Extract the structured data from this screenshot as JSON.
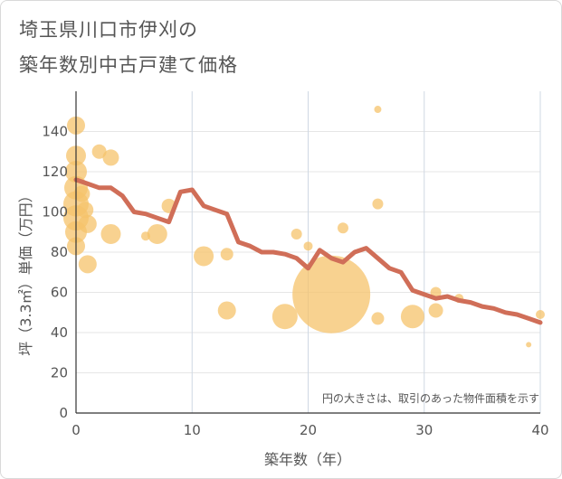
{
  "title": {
    "line1": "埼玉県川口市伊刈の",
    "line2": "築年数別中古戸建て価格"
  },
  "chart_data": {
    "type": "scatter",
    "title": "埼玉県川口市伊刈の築年数別中古戸建て価格",
    "xlabel": "築年数（年）",
    "ylabel": "坪（3.3㎡）単価（万円）",
    "xlim": [
      0,
      40
    ],
    "ylim": [
      0,
      160
    ],
    "xticks": [
      0,
      10,
      20,
      30,
      40
    ],
    "yticks": [
      0,
      20,
      40,
      60,
      80,
      100,
      120,
      140
    ],
    "grid": true,
    "note": "円の大きさは、取引のあった物件面積を示す",
    "colors": {
      "bubble": "#f5c36b",
      "line": "#d06e58"
    },
    "bubbles": [
      {
        "x": 0,
        "y": 143,
        "r": 10
      },
      {
        "x": 0,
        "y": 128,
        "r": 11
      },
      {
        "x": 0,
        "y": 120,
        "r": 12
      },
      {
        "x": 0,
        "y": 112,
        "r": 13
      },
      {
        "x": 0,
        "y": 104,
        "r": 14
      },
      {
        "x": 0,
        "y": 97,
        "r": 14
      },
      {
        "x": 0,
        "y": 90,
        "r": 12
      },
      {
        "x": 0,
        "y": 83,
        "r": 10
      },
      {
        "x": 0.5,
        "y": 109,
        "r": 9
      },
      {
        "x": 0.8,
        "y": 101,
        "r": 9
      },
      {
        "x": 1,
        "y": 94,
        "r": 10
      },
      {
        "x": 1,
        "y": 74,
        "r": 10
      },
      {
        "x": 2,
        "y": 130,
        "r": 8
      },
      {
        "x": 3,
        "y": 127,
        "r": 9
      },
      {
        "x": 3,
        "y": 89,
        "r": 11
      },
      {
        "x": 6,
        "y": 88,
        "r": 5
      },
      {
        "x": 7,
        "y": 89,
        "r": 11
      },
      {
        "x": 8,
        "y": 103,
        "r": 8
      },
      {
        "x": 11,
        "y": 78,
        "r": 11
      },
      {
        "x": 13,
        "y": 79,
        "r": 7
      },
      {
        "x": 13,
        "y": 51,
        "r": 10
      },
      {
        "x": 18,
        "y": 48,
        "r": 14
      },
      {
        "x": 19,
        "y": 89,
        "r": 6
      },
      {
        "x": 20,
        "y": 83,
        "r": 5
      },
      {
        "x": 22,
        "y": 59,
        "r": 43
      },
      {
        "x": 23,
        "y": 92,
        "r": 6
      },
      {
        "x": 26,
        "y": 151,
        "r": 4
      },
      {
        "x": 26,
        "y": 104,
        "r": 6
      },
      {
        "x": 26,
        "y": 47,
        "r": 7
      },
      {
        "x": 29,
        "y": 48,
        "r": 13
      },
      {
        "x": 31,
        "y": 60,
        "r": 6
      },
      {
        "x": 31,
        "y": 51,
        "r": 8
      },
      {
        "x": 33,
        "y": 57,
        "r": 5
      },
      {
        "x": 39,
        "y": 34,
        "r": 3
      },
      {
        "x": 40,
        "y": 49,
        "r": 5
      }
    ],
    "trend": {
      "x": [
        0,
        1,
        2,
        3,
        4,
        5,
        6,
        7,
        8,
        9,
        10,
        11,
        12,
        13,
        14,
        15,
        16,
        17,
        18,
        19,
        20,
        21,
        22,
        23,
        24,
        25,
        26,
        27,
        28,
        29,
        30,
        31,
        32,
        33,
        34,
        35,
        36,
        37,
        38,
        39,
        40
      ],
      "y": [
        116,
        114,
        112,
        112,
        108,
        100,
        99,
        97,
        95,
        110,
        111,
        103,
        101,
        99,
        85,
        83,
        80,
        80,
        79,
        77,
        72,
        81,
        77,
        75,
        80,
        82,
        77,
        72,
        70,
        61,
        59,
        57,
        58,
        56,
        55,
        53,
        52,
        50,
        49,
        47,
        45
      ]
    }
  }
}
